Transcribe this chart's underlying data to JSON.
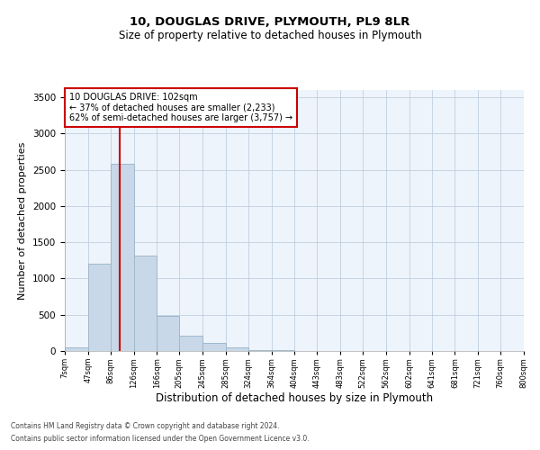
{
  "title": "10, DOUGLAS DRIVE, PLYMOUTH, PL9 8LR",
  "subtitle": "Size of property relative to detached houses in Plymouth",
  "xlabel": "Distribution of detached houses by size in Plymouth",
  "ylabel": "Number of detached properties",
  "footnote1": "Contains HM Land Registry data © Crown copyright and database right 2024.",
  "footnote2": "Contains public sector information licensed under the Open Government Licence v3.0.",
  "bar_color": "#c8d8e8",
  "bar_edge_color": "#a0b8cc",
  "grid_color": "#c0cfe0",
  "background_color": "#eef4fb",
  "vline_x": 102,
  "vline_color": "#cc0000",
  "annotation_text": "10 DOUGLAS DRIVE: 102sqm\n← 37% of detached houses are smaller (2,233)\n62% of semi-detached houses are larger (3,757) →",
  "annotation_box_color": "#ffffff",
  "annotation_border_color": "#cc0000",
  "bin_edges": [
    7,
    47,
    86,
    126,
    166,
    205,
    245,
    285,
    324,
    364,
    404,
    443,
    483,
    522,
    562,
    602,
    641,
    681,
    721,
    760,
    800
  ],
  "bar_heights": [
    50,
    1200,
    2580,
    1310,
    490,
    205,
    110,
    45,
    15,
    8,
    5,
    3,
    2,
    1,
    1,
    1,
    0,
    0,
    1,
    0
  ],
  "ylim": [
    0,
    3600
  ],
  "yticks": [
    0,
    500,
    1000,
    1500,
    2000,
    2500,
    3000,
    3500
  ],
  "tick_labels": [
    "7sqm",
    "47sqm",
    "86sqm",
    "126sqm",
    "166sqm",
    "205sqm",
    "245sqm",
    "285sqm",
    "324sqm",
    "364sqm",
    "404sqm",
    "443sqm",
    "483sqm",
    "522sqm",
    "562sqm",
    "602sqm",
    "641sqm",
    "681sqm",
    "721sqm",
    "760sqm",
    "800sqm"
  ]
}
